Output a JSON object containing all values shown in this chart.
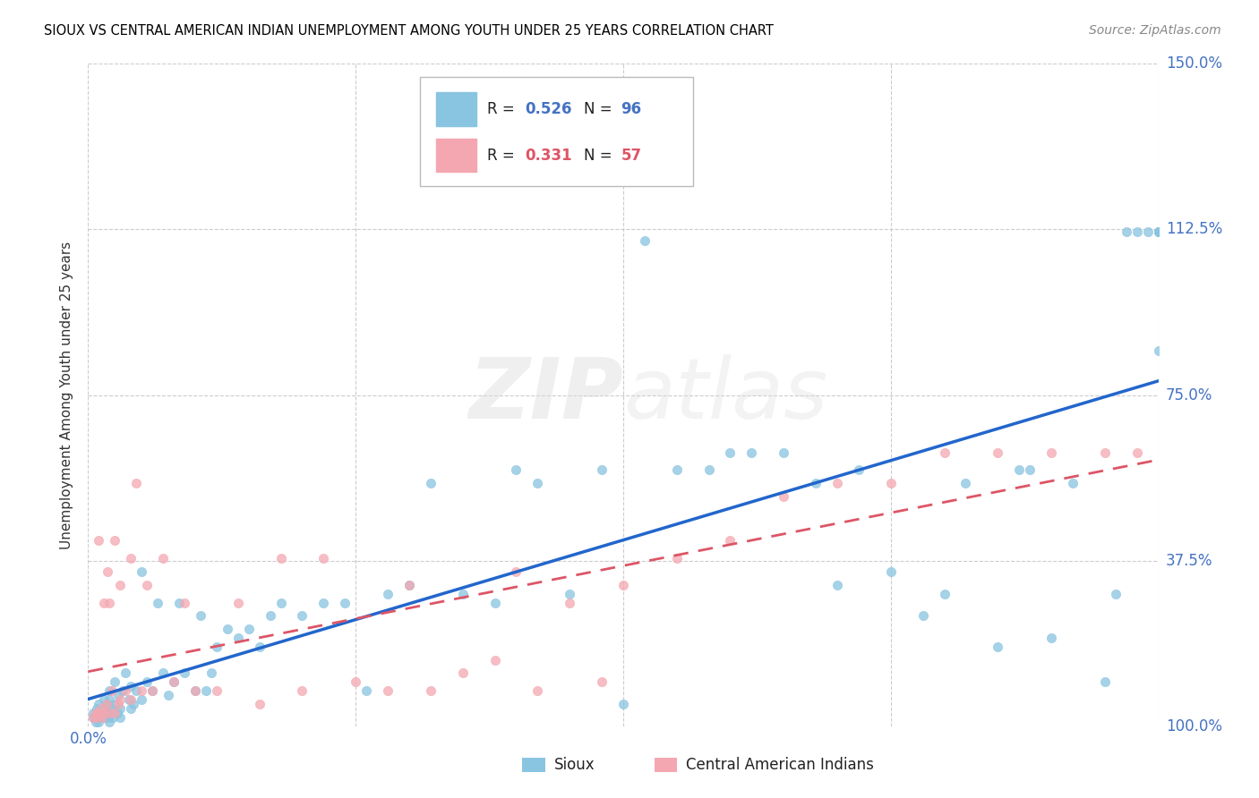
{
  "title": "SIOUX VS CENTRAL AMERICAN INDIAN UNEMPLOYMENT AMONG YOUTH UNDER 25 YEARS CORRELATION CHART",
  "source": "Source: ZipAtlas.com",
  "ylabel": "Unemployment Among Youth under 25 years",
  "ylim": [
    0.0,
    1.5
  ],
  "xlim": [
    0.0,
    1.0
  ],
  "sioux_color": "#89c4e1",
  "ca_color": "#f4a7b0",
  "sioux_line_color": "#2266cc",
  "ca_line_color": "#dd5566",
  "sioux_R": 0.526,
  "sioux_N": 96,
  "ca_R": 0.331,
  "ca_N": 57,
  "legend_label_sioux": "Sioux",
  "legend_label_ca": "Central American Indians",
  "watermark_zip": "ZIP",
  "watermark_atlas": "atlas",
  "sioux_x": [
    0.005,
    0.005,
    0.007,
    0.008,
    0.009,
    0.01,
    0.01,
    0.01,
    0.015,
    0.015,
    0.015,
    0.017,
    0.018,
    0.019,
    0.02,
    0.02,
    0.02,
    0.02,
    0.022,
    0.023,
    0.025,
    0.025,
    0.027,
    0.028,
    0.03,
    0.03,
    0.032,
    0.035,
    0.038,
    0.04,
    0.04,
    0.042,
    0.045,
    0.05,
    0.05,
    0.055,
    0.06,
    0.065,
    0.07,
    0.075,
    0.08,
    0.085,
    0.09,
    0.1,
    0.105,
    0.11,
    0.115,
    0.12,
    0.13,
    0.14,
    0.15,
    0.16,
    0.17,
    0.18,
    0.2,
    0.22,
    0.24,
    0.26,
    0.28,
    0.3,
    0.32,
    0.35,
    0.38,
    0.4,
    0.42,
    0.45,
    0.48,
    0.5,
    0.52,
    0.55,
    0.58,
    0.6,
    0.62,
    0.65,
    0.68,
    0.7,
    0.72,
    0.75,
    0.78,
    0.8,
    0.82,
    0.85,
    0.87,
    0.88,
    0.9,
    0.92,
    0.95,
    0.96,
    0.97,
    0.98,
    0.99,
    1.0,
    1.0,
    1.0,
    1.0,
    1.0
  ],
  "sioux_y": [
    0.02,
    0.03,
    0.01,
    0.04,
    0.02,
    0.01,
    0.03,
    0.05,
    0.02,
    0.04,
    0.06,
    0.03,
    0.05,
    0.02,
    0.01,
    0.03,
    0.06,
    0.08,
    0.04,
    0.02,
    0.05,
    0.1,
    0.03,
    0.07,
    0.02,
    0.04,
    0.08,
    0.12,
    0.06,
    0.04,
    0.09,
    0.05,
    0.08,
    0.06,
    0.35,
    0.1,
    0.08,
    0.28,
    0.12,
    0.07,
    0.1,
    0.28,
    0.12,
    0.08,
    0.25,
    0.08,
    0.12,
    0.18,
    0.22,
    0.2,
    0.22,
    0.18,
    0.25,
    0.28,
    0.25,
    0.28,
    0.28,
    0.08,
    0.3,
    0.32,
    0.55,
    0.3,
    0.28,
    0.58,
    0.55,
    0.3,
    0.58,
    0.05,
    1.1,
    0.58,
    0.58,
    0.62,
    0.62,
    0.62,
    0.55,
    0.32,
    0.58,
    0.35,
    0.25,
    0.3,
    0.55,
    0.18,
    0.58,
    0.58,
    0.2,
    0.55,
    0.1,
    0.3,
    1.12,
    1.12,
    1.12,
    1.12,
    1.12,
    1.12,
    1.12,
    0.85
  ],
  "ca_x": [
    0.005,
    0.007,
    0.008,
    0.01,
    0.01,
    0.012,
    0.013,
    0.015,
    0.015,
    0.017,
    0.018,
    0.02,
    0.02,
    0.022,
    0.025,
    0.025,
    0.028,
    0.03,
    0.03,
    0.035,
    0.04,
    0.04,
    0.045,
    0.05,
    0.055,
    0.06,
    0.07,
    0.08,
    0.09,
    0.1,
    0.12,
    0.14,
    0.16,
    0.18,
    0.2,
    0.22,
    0.25,
    0.28,
    0.3,
    0.32,
    0.35,
    0.38,
    0.4,
    0.42,
    0.45,
    0.48,
    0.5,
    0.55,
    0.6,
    0.65,
    0.7,
    0.75,
    0.8,
    0.85,
    0.9,
    0.95,
    0.98
  ],
  "ca_y": [
    0.02,
    0.03,
    0.02,
    0.03,
    0.42,
    0.04,
    0.02,
    0.03,
    0.28,
    0.05,
    0.35,
    0.03,
    0.28,
    0.08,
    0.03,
    0.42,
    0.05,
    0.06,
    0.32,
    0.08,
    0.38,
    0.06,
    0.55,
    0.08,
    0.32,
    0.08,
    0.38,
    0.1,
    0.28,
    0.08,
    0.08,
    0.28,
    0.05,
    0.38,
    0.08,
    0.38,
    0.1,
    0.08,
    0.32,
    0.08,
    0.12,
    0.15,
    0.35,
    0.08,
    0.28,
    0.1,
    0.32,
    0.38,
    0.42,
    0.52,
    0.55,
    0.55,
    0.62,
    0.62,
    0.62,
    0.62,
    0.62
  ]
}
